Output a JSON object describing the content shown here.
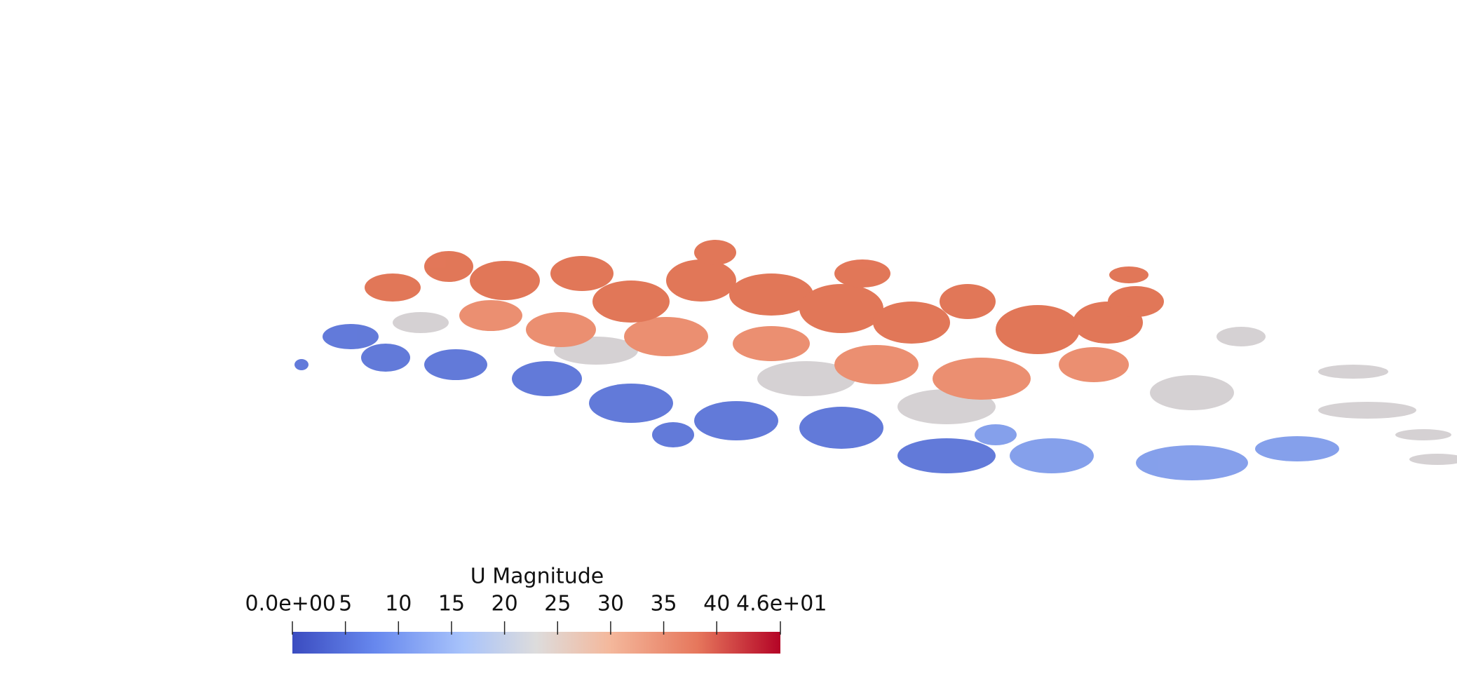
{
  "colorbar": {
    "title": "U Magnitude",
    "range": [
      0,
      46
    ],
    "ticks": [
      {
        "value": 0,
        "label": "0.0e+00"
      },
      5,
      10,
      15,
      20,
      25,
      30,
      35,
      40,
      {
        "value": 46,
        "label": "4.6e+01"
      }
    ]
  }
}
